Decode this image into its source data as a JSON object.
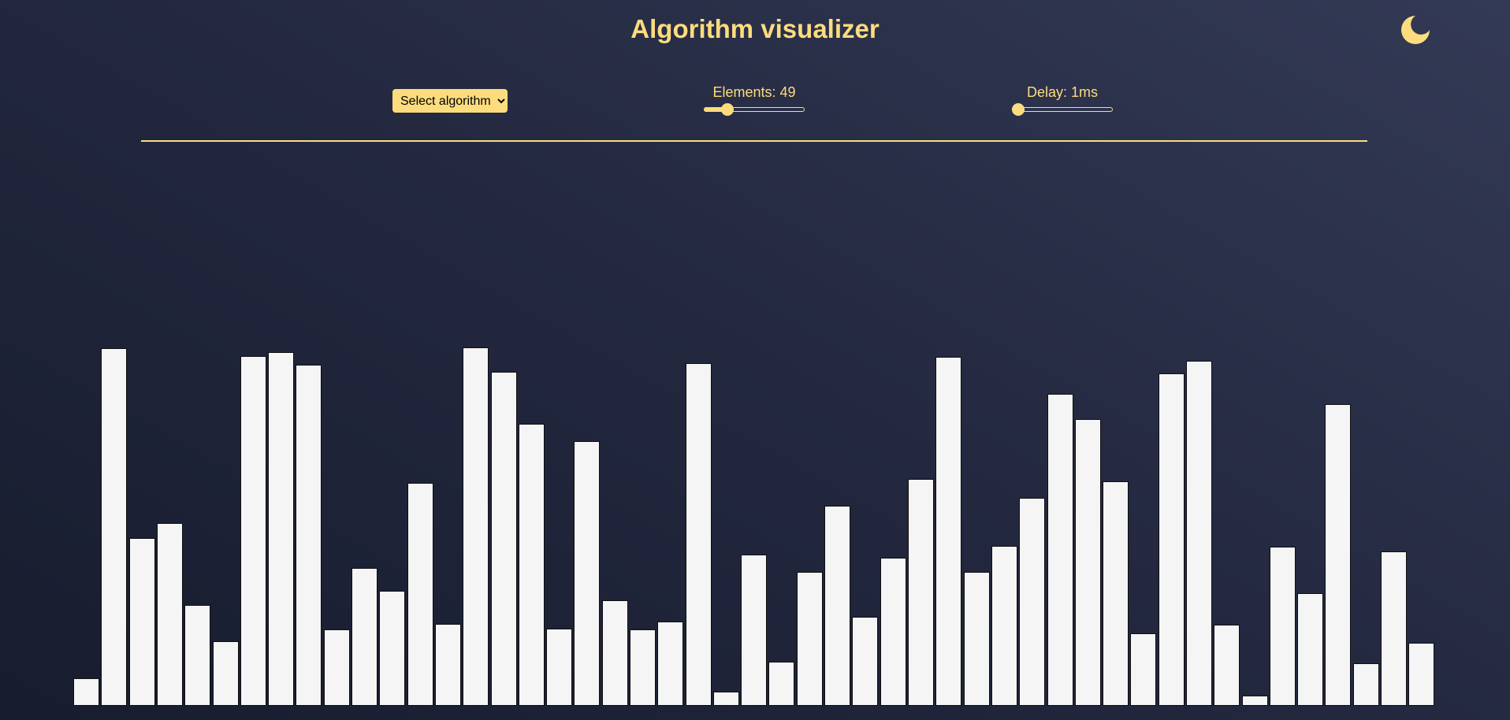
{
  "app": {
    "title": "Algorithm visualizer",
    "theme_icon": "moon-icon"
  },
  "colors": {
    "accent": "#fddc7e",
    "bar": "#f5f5f5",
    "background_start": "#171c2e",
    "background_end": "#333a55"
  },
  "controls": {
    "algorithm_select": {
      "selected": "Select algorithm"
    },
    "elements": {
      "label": "Elements: 49",
      "fraction": 0.2
    },
    "delay": {
      "label": "Delay: 1ms",
      "fraction": 0.0
    }
  },
  "chart_data": {
    "type": "bar",
    "values": [
      35,
      455,
      213,
      233,
      128,
      82,
      445,
      450,
      434,
      97,
      175,
      146,
      284,
      104,
      456,
      425,
      359,
      98,
      337,
      134,
      97,
      107,
      436,
      18,
      192,
      56,
      170,
      255,
      113,
      188,
      289,
      444,
      170,
      203,
      265,
      397,
      365,
      286,
      92,
      423,
      439,
      103,
      13,
      202,
      143,
      384,
      54,
      196,
      80
    ],
    "ylim": [
      0,
      456
    ]
  }
}
